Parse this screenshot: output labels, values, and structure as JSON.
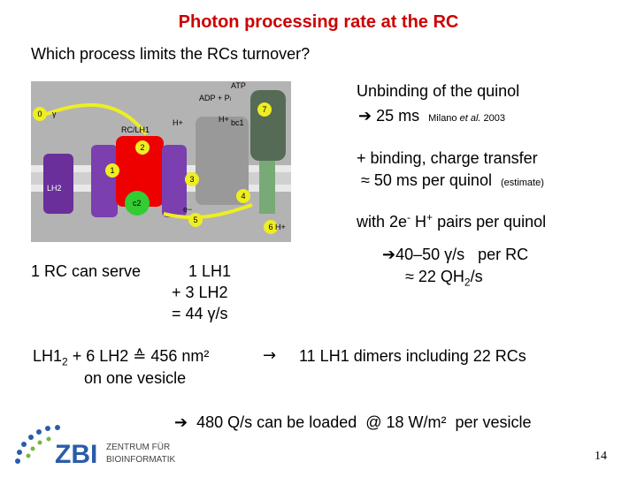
{
  "header": {
    "title": "Photon processing rate at the RC",
    "subtitle": "Which process limits the RCs turnover?"
  },
  "figure": {
    "labels": {
      "atp": "ATP",
      "adp": "ADP + P",
      "adp_sub": "i",
      "h_top": "H+",
      "h_mid": "H+",
      "h_right": "H+",
      "rc": "RC/LH1",
      "lh2": "LH2",
      "c2": "c2",
      "bc1": "bc1",
      "e": "e−",
      "gamma": "γ"
    },
    "steps": [
      "0",
      "1",
      "2",
      "3",
      "4",
      "5",
      "6",
      "7"
    ]
  },
  "right": {
    "unbinding": "Unbinding of the quinol",
    "arrow1": "➔",
    "time1": " 25 ms",
    "ref_author": "Milano ",
    "ref_etal": "et al.",
    "ref_year": " 2003",
    "binding": "+ binding, charge transfer",
    "time2": "≈ 50 ms per quinol",
    "estimate": "(estimate)",
    "pairs_a": "with 2e",
    "pairs_sup1": "-",
    "pairs_b": " H",
    "pairs_sup2": "+",
    "pairs_c": " pairs per quinol",
    "arrow2": "➔",
    "rate": "40–50 γ/s   per RC",
    "qh_a": "≈ 22 QH",
    "qh_sub": "2",
    "qh_b": "/s"
  },
  "left": {
    "serve": "1 RC can serve",
    "lh1": "1 LH1",
    "lh2": "+ 3 LH2",
    "sum": "= 44 γ/s",
    "area_a": "LH1",
    "area_sub": "2",
    "area_b": " + 6 LH2 ≙ 456 nm²",
    "vesicle": "on one vesicle",
    "implies": "→",
    "dimers": "11 LH1 dimers including 22 RCs"
  },
  "bottom": {
    "arrow": "➔",
    "load": "480 Q/s can be loaded  @ 18 W/m²  per vesicle"
  },
  "logo": {
    "short": "ZBI",
    "line1": "ZENTRUM FÜR",
    "line2": "BIOINFORMATIK"
  },
  "page_number": "14"
}
